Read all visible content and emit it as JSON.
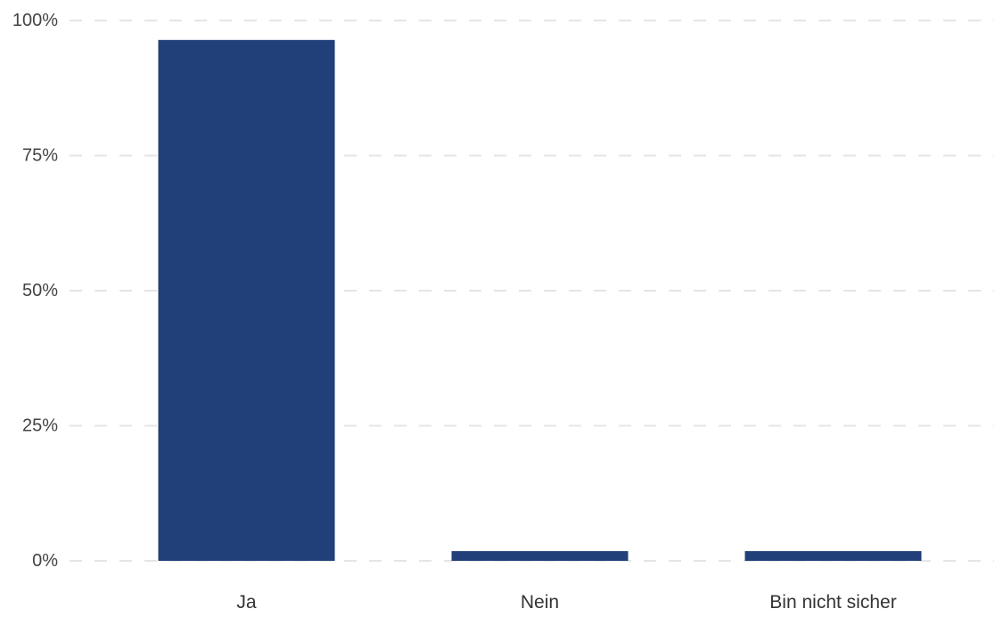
{
  "chart_data": {
    "type": "bar",
    "title": "",
    "xlabel": "",
    "ylabel": "",
    "categories": [
      "Ja",
      "Nein",
      "Bin nicht sicher"
    ],
    "values": [
      96.4,
      1.8,
      1.8
    ],
    "ylim": [
      0,
      100
    ],
    "yticks": [
      0,
      25,
      50,
      75,
      100
    ],
    "ytick_labels": [
      "0%",
      "25%",
      "50%",
      "75%",
      "100%"
    ],
    "grid": true,
    "legend": "none",
    "bar_color": "#213f78",
    "grid_color": "#e5e5e5"
  }
}
